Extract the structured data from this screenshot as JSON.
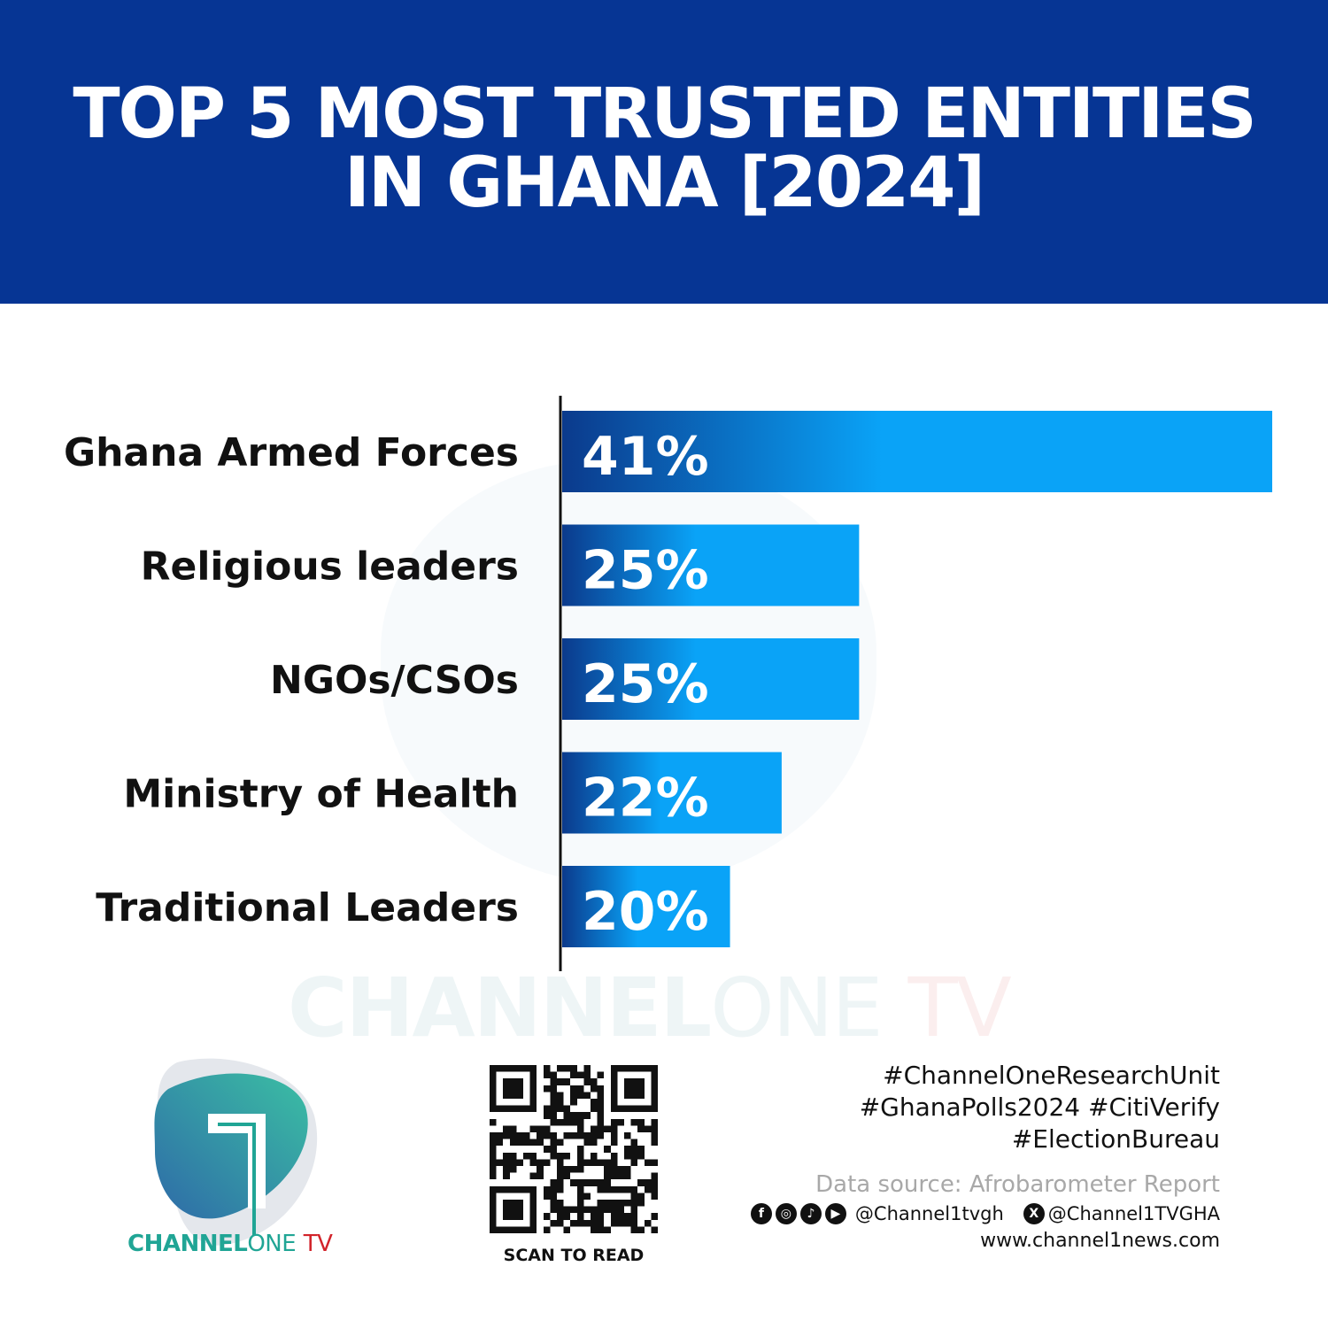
{
  "header": {
    "title_line1": "TOP 5 MOST TRUSTED ENTITIES",
    "title_line2": "IN GHANA [2024]"
  },
  "chart_data": {
    "type": "bar",
    "orientation": "horizontal",
    "title": "TOP 5 MOST TRUSTED ENTITIES IN GHANA [2024]",
    "categories": [
      "Ghana Armed Forces",
      "Religious leaders",
      "NGOs/CSOs",
      "Ministry of Health",
      "Traditional Leaders"
    ],
    "values": [
      41,
      25,
      25,
      22,
      20
    ],
    "data_labels": [
      "41%",
      "25%",
      "25%",
      "22%",
      "20%"
    ],
    "xlim": [
      13.5,
      41
    ],
    "grid": false,
    "bar_gradient": [
      "#0b3a8c",
      "#0aa3f7"
    ]
  },
  "watermark": {
    "brand_bold": "CHANNEL",
    "brand_light": "ONE",
    "brand_tv": "TV"
  },
  "logo": {
    "brand_bold": "CHANNEL",
    "brand_light": "ONE",
    "brand_tv": "TV"
  },
  "qr": {
    "caption": "SCAN TO READ"
  },
  "footer": {
    "hashtags": [
      "#ChannelOneResearchUnit",
      "#GhanaPolls2024 #CitiVerify",
      "#ElectionBureau"
    ],
    "source": "Data source: Afrobarometer Report",
    "social_handle": "@Channel1tvgh",
    "x_handle": "@Channel1TVGHA",
    "website": "www.channel1news.com",
    "icons": [
      "facebook-icon",
      "instagram-icon",
      "tiktok-icon",
      "youtube-icon",
      "x-icon"
    ]
  },
  "colors": {
    "header": "#063594",
    "brand_teal": "#20a595",
    "brand_red": "#d2232a"
  }
}
